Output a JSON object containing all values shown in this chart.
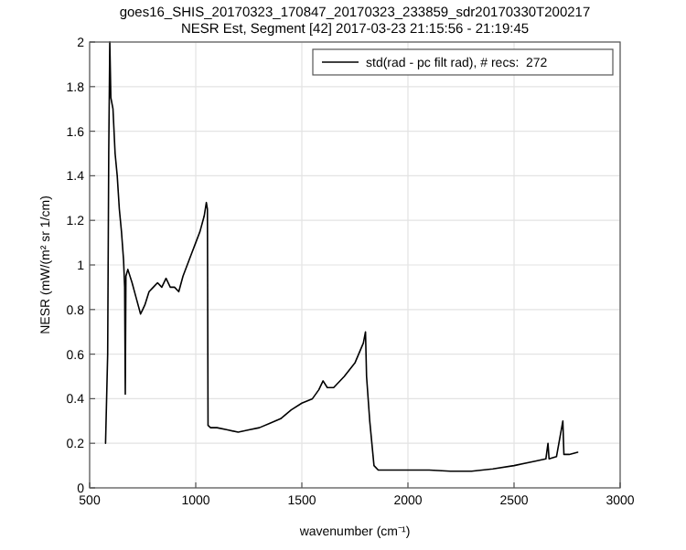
{
  "chart_data": {
    "type": "line",
    "title": "goes16_SHIS_20170323_170847_20170323_233859_sdr20170330T200217",
    "subtitle": "NESR Est, Segment [42] 2017-03-23 21:15:56 - 21:19:45",
    "xlabel": "wavenumber (cm⁻¹)",
    "ylabel": "NESR (mW/(m² sr 1/cm)",
    "x": [
      575,
      585,
      590,
      595,
      600,
      610,
      620,
      630,
      640,
      650,
      660,
      665,
      668,
      671,
      680,
      700,
      720,
      740,
      750,
      760,
      780,
      800,
      820,
      840,
      860,
      880,
      900,
      920,
      940,
      960,
      980,
      1000,
      1020,
      1040,
      1050,
      1055,
      1058,
      1070,
      1100,
      1150,
      1200,
      1250,
      1300,
      1350,
      1400,
      1450,
      1500,
      1550,
      1580,
      1600,
      1620,
      1650,
      1700,
      1750,
      1790,
      1800,
      1805,
      1820,
      1840,
      1860,
      1900,
      2000,
      2100,
      2200,
      2300,
      2400,
      2500,
      2600,
      2650,
      2660,
      2665,
      2700,
      2730,
      2735,
      2760,
      2800
    ],
    "series": [
      {
        "name": "std(rad - pc filt rad), # recs:  272",
        "color": "#000000",
        "values": [
          0.2,
          0.6,
          1.5,
          2.0,
          1.75,
          1.7,
          1.5,
          1.4,
          1.25,
          1.15,
          1.02,
          0.9,
          0.42,
          0.95,
          0.98,
          0.92,
          0.85,
          0.78,
          0.8,
          0.82,
          0.88,
          0.9,
          0.92,
          0.9,
          0.94,
          0.9,
          0.9,
          0.88,
          0.95,
          1.0,
          1.05,
          1.1,
          1.15,
          1.22,
          1.28,
          1.25,
          0.28,
          0.27,
          0.27,
          0.26,
          0.25,
          0.26,
          0.27,
          0.29,
          0.31,
          0.35,
          0.38,
          0.4,
          0.44,
          0.48,
          0.45,
          0.45,
          0.5,
          0.56,
          0.65,
          0.7,
          0.5,
          0.3,
          0.1,
          0.08,
          0.08,
          0.08,
          0.08,
          0.075,
          0.075,
          0.085,
          0.1,
          0.12,
          0.13,
          0.2,
          0.13,
          0.14,
          0.3,
          0.15,
          0.15,
          0.16
        ]
      }
    ],
    "xlim": [
      500,
      3000
    ],
    "xticks": [
      500,
      1000,
      1500,
      2000,
      2500,
      3000
    ],
    "ylim": [
      0,
      2
    ],
    "yticks": [
      0,
      0.2,
      0.4,
      0.6,
      0.8,
      1,
      1.2,
      1.4,
      1.6,
      1.8,
      2
    ],
    "grid": true,
    "legend": "top right",
    "line_style": "solid",
    "marker": "none"
  }
}
